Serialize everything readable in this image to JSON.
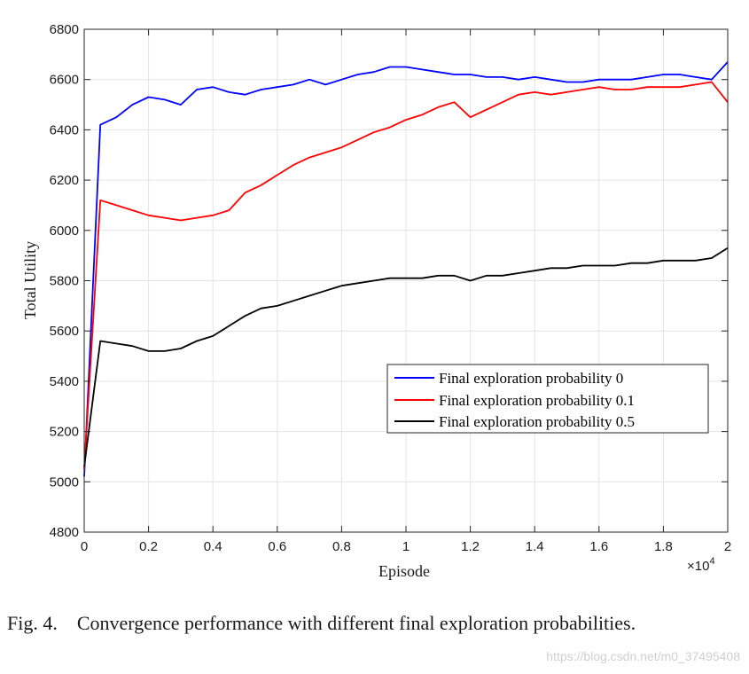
{
  "chart_data": {
    "type": "line",
    "title": "",
    "xlabel": "Episode",
    "ylabel": "Total Utility",
    "x_multiplier_label": "×10",
    "x_multiplier_exponent": "4",
    "xlim": [
      0,
      2
    ],
    "ylim": [
      4800,
      6800
    ],
    "xticks": [
      "0",
      "0.2",
      "0.4",
      "0.6",
      "0.8",
      "1",
      "1.2",
      "1.4",
      "1.6",
      "1.8",
      "2"
    ],
    "yticks": [
      "4800",
      "5000",
      "5200",
      "5400",
      "5600",
      "5800",
      "6000",
      "6200",
      "6400",
      "6600",
      "6800"
    ],
    "grid": true,
    "legend_position": "lower-right",
    "x": [
      0,
      0.05,
      0.1,
      0.15,
      0.2,
      0.25,
      0.3,
      0.35,
      0.4,
      0.45,
      0.5,
      0.55,
      0.6,
      0.65,
      0.7,
      0.75,
      0.8,
      0.85,
      0.9,
      0.95,
      1.0,
      1.05,
      1.1,
      1.15,
      1.2,
      1.25,
      1.3,
      1.35,
      1.4,
      1.45,
      1.5,
      1.55,
      1.6,
      1.65,
      1.7,
      1.75,
      1.8,
      1.85,
      1.9,
      1.95,
      2.0
    ],
    "series": [
      {
        "name": "Final exploration probability 0",
        "color": "#0000ff",
        "values": [
          5020,
          6420,
          6450,
          6500,
          6530,
          6520,
          6500,
          6560,
          6570,
          6550,
          6540,
          6560,
          6570,
          6580,
          6600,
          6580,
          6600,
          6620,
          6630,
          6650,
          6650,
          6640,
          6630,
          6620,
          6620,
          6610,
          6610,
          6600,
          6610,
          6600,
          6590,
          6590,
          6600,
          6600,
          6600,
          6610,
          6620,
          6620,
          6610,
          6600,
          6670
        ]
      },
      {
        "name": "Final exploration probability 0.1",
        "color": "#ff0000",
        "values": [
          5050,
          6120,
          6100,
          6080,
          6060,
          6050,
          6040,
          6050,
          6060,
          6080,
          6150,
          6180,
          6220,
          6260,
          6290,
          6310,
          6330,
          6360,
          6390,
          6410,
          6440,
          6460,
          6490,
          6510,
          6450,
          6480,
          6510,
          6540,
          6550,
          6540,
          6550,
          6560,
          6570,
          6560,
          6560,
          6570,
          6570,
          6570,
          6580,
          6590,
          6510
        ]
      },
      {
        "name": "Final exploration probability 0.5",
        "color": "#000000",
        "values": [
          5060,
          5560,
          5550,
          5540,
          5520,
          5520,
          5530,
          5560,
          5580,
          5620,
          5660,
          5690,
          5700,
          5720,
          5740,
          5760,
          5780,
          5790,
          5800,
          5810,
          5810,
          5810,
          5820,
          5820,
          5800,
          5820,
          5820,
          5830,
          5840,
          5850,
          5850,
          5860,
          5860,
          5860,
          5870,
          5870,
          5880,
          5880,
          5880,
          5890,
          5930
        ]
      }
    ]
  },
  "caption": {
    "label": "Fig. 4.",
    "text": "Convergence performance with different final exploration probabilities."
  },
  "watermark": "https://blog.csdn.net/m0_37495408"
}
